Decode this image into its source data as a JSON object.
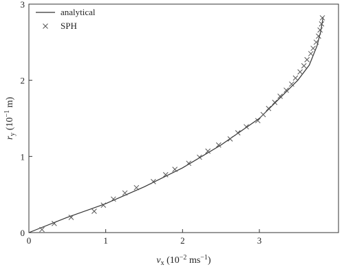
{
  "chart_data": {
    "type": "line",
    "x_label": [
      "v",
      "x",
      " (10",
      "−2",
      " ms",
      "−1",
      ")"
    ],
    "y_label": [
      "r",
      "y",
      " (10",
      "−1",
      " m)"
    ],
    "xlim": [
      0,
      4.03
    ],
    "ylim": [
      0,
      3
    ],
    "xticks": [
      0,
      1,
      2,
      3
    ],
    "yticks": [
      0,
      1,
      2,
      3
    ],
    "legend": "upper-left",
    "series": [
      {
        "name": "analytical",
        "color": "#333333",
        "mark": "line",
        "x": [
          0,
          0.5,
          1,
          1.5,
          2,
          2.5,
          3,
          3.3,
          3.5,
          3.65,
          3.75,
          3.8,
          3.83
        ],
        "values": [
          0,
          0.2,
          0.38,
          0.6,
          0.85,
          1.15,
          1.5,
          1.8,
          2.0,
          2.2,
          2.45,
          2.65,
          2.83
        ]
      },
      {
        "name": "SPH",
        "color": "#555555",
        "mark": "cross",
        "x": [
          0.17,
          0.33,
          0.55,
          0.85,
          0.97,
          1.1,
          1.25,
          1.4,
          1.62,
          1.78,
          1.9,
          2.08,
          2.22,
          2.33,
          2.47,
          2.62,
          2.72,
          2.83,
          2.98,
          3.05,
          3.12,
          3.2,
          3.27,
          3.35,
          3.42,
          3.47,
          3.53,
          3.58,
          3.62,
          3.67,
          3.7,
          3.74,
          3.77,
          3.79,
          3.81,
          3.82
        ],
        "values": [
          0.04,
          0.12,
          0.2,
          0.28,
          0.36,
          0.44,
          0.52,
          0.59,
          0.67,
          0.76,
          0.83,
          0.91,
          0.99,
          1.07,
          1.15,
          1.23,
          1.31,
          1.39,
          1.47,
          1.55,
          1.63,
          1.71,
          1.79,
          1.87,
          1.95,
          2.03,
          2.11,
          2.19,
          2.27,
          2.35,
          2.42,
          2.5,
          2.58,
          2.66,
          2.74,
          2.82
        ]
      }
    ]
  }
}
